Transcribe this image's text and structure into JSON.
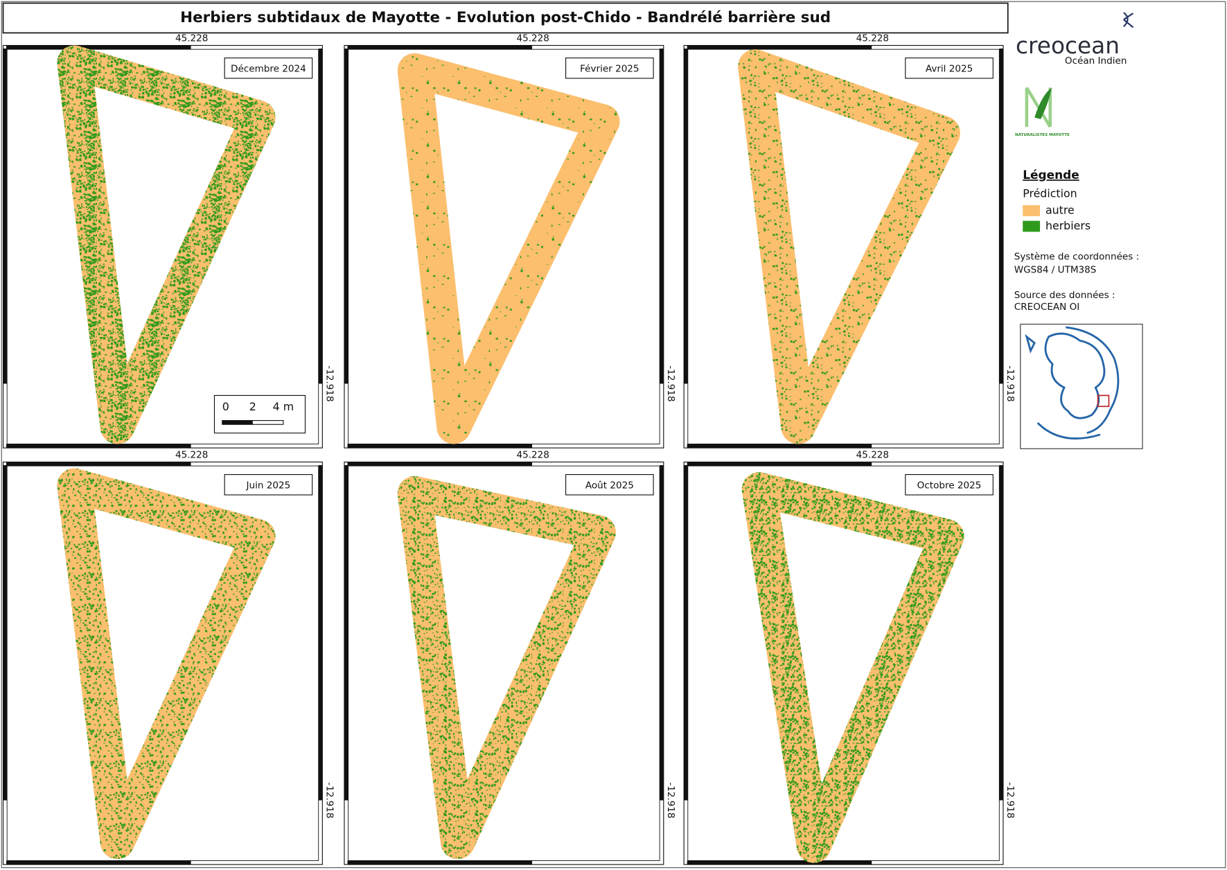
{
  "header": {
    "title": "Herbiers subtidaux de Mayotte - Evolution post-Chido - Bandrélé barrière sud"
  },
  "panels": [
    {
      "date": "Décembre 2024",
      "lon": "45.228",
      "lat": "-12.918"
    },
    {
      "date": "Février 2025",
      "lon": "45.228",
      "lat": "-12.918"
    },
    {
      "date": "Avril 2025",
      "lon": "45.228",
      "lat": "-12.918"
    },
    {
      "date": "Juin 2025",
      "lon": "45.228",
      "lat": "-12.918"
    },
    {
      "date": "Août 2025",
      "lon": "45.228",
      "lat": "-12.918"
    },
    {
      "date": "Octobre 2025",
      "lon": "45.228",
      "lat": "-12.918"
    }
  ],
  "scale_bar": {
    "labels": [
      "0",
      "2",
      "4 m"
    ]
  },
  "logos": {
    "brand": "creocean",
    "brand_sub": "Océan Indien",
    "partner": "NATURALISTES MAYOTTE"
  },
  "legend": {
    "title": "Légende",
    "group": "Prédiction",
    "items": [
      {
        "label": "autre",
        "color": "#fbbf6e"
      },
      {
        "label": "herbiers",
        "color": "#2e9a1c"
      }
    ]
  },
  "info": {
    "crs_title": "Système de coordonnées :",
    "crs": "WGS84 / UTM38S",
    "source_title": "Source des données :",
    "source": "CREOCEAN OI"
  }
}
